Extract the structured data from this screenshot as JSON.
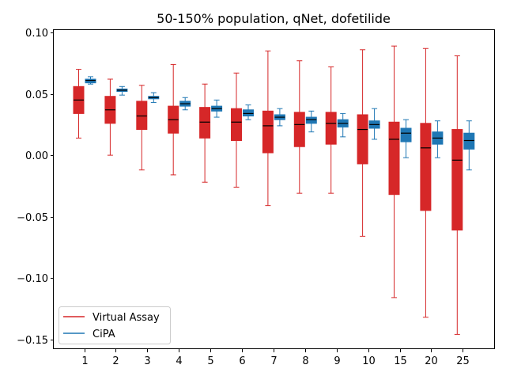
{
  "chart_data": {
    "type": "box",
    "title": "50-150% population, qNet, dofetilide",
    "xlabel": "",
    "ylabel": "",
    "categories": [
      "1",
      "2",
      "3",
      "4",
      "5",
      "6",
      "7",
      "8",
      "9",
      "10",
      "15",
      "20",
      "25"
    ],
    "ylim": [
      -0.158,
      0.102
    ],
    "yticks": [
      -0.15,
      -0.1,
      -0.05,
      0.0,
      0.05,
      0.1
    ],
    "ytick_labels": [
      "−0.15",
      "−0.10",
      "−0.05",
      "0.00",
      "0.05",
      "0.10"
    ],
    "legend_position": "lower-left",
    "grid": false,
    "series": [
      {
        "name": "Virtual Assay",
        "color": "#d62728",
        "boxes": [
          {
            "whislo": 0.014,
            "q1": 0.034,
            "med": 0.045,
            "q3": 0.056,
            "whishi": 0.07
          },
          {
            "whislo": 0.0,
            "q1": 0.026,
            "med": 0.037,
            "q3": 0.048,
            "whishi": 0.062
          },
          {
            "whislo": -0.012,
            "q1": 0.021,
            "med": 0.032,
            "q3": 0.044,
            "whishi": 0.057
          },
          {
            "whislo": -0.016,
            "q1": 0.018,
            "med": 0.029,
            "q3": 0.04,
            "whishi": 0.074
          },
          {
            "whislo": -0.022,
            "q1": 0.014,
            "med": 0.027,
            "q3": 0.039,
            "whishi": 0.058
          },
          {
            "whislo": -0.026,
            "q1": 0.012,
            "med": 0.027,
            "q3": 0.038,
            "whishi": 0.067
          },
          {
            "whislo": -0.041,
            "q1": 0.002,
            "med": 0.024,
            "q3": 0.036,
            "whishi": 0.085
          },
          {
            "whislo": -0.031,
            "q1": 0.007,
            "med": 0.025,
            "q3": 0.035,
            "whishi": 0.077
          },
          {
            "whislo": -0.031,
            "q1": 0.009,
            "med": 0.026,
            "q3": 0.035,
            "whishi": 0.072
          },
          {
            "whislo": -0.066,
            "q1": -0.007,
            "med": 0.021,
            "q3": 0.033,
            "whishi": 0.086
          },
          {
            "whislo": -0.116,
            "q1": -0.032,
            "med": 0.013,
            "q3": 0.027,
            "whishi": 0.089
          },
          {
            "whislo": -0.132,
            "q1": -0.045,
            "med": 0.006,
            "q3": 0.026,
            "whishi": 0.087
          },
          {
            "whislo": -0.146,
            "q1": -0.061,
            "med": -0.004,
            "q3": 0.021,
            "whishi": 0.081
          }
        ]
      },
      {
        "name": "CiPA",
        "color": "#1f77b4",
        "boxes": [
          {
            "whislo": 0.058,
            "q1": 0.059,
            "med": 0.061,
            "q3": 0.062,
            "whishi": 0.064
          },
          {
            "whislo": 0.049,
            "q1": 0.052,
            "med": 0.053,
            "q3": 0.054,
            "whishi": 0.056
          },
          {
            "whislo": 0.043,
            "q1": 0.046,
            "med": 0.047,
            "q3": 0.048,
            "whishi": 0.051
          },
          {
            "whislo": 0.037,
            "q1": 0.04,
            "med": 0.042,
            "q3": 0.044,
            "whishi": 0.047
          },
          {
            "whislo": 0.031,
            "q1": 0.036,
            "med": 0.038,
            "q3": 0.04,
            "whishi": 0.045
          },
          {
            "whislo": 0.029,
            "q1": 0.032,
            "med": 0.034,
            "q3": 0.037,
            "whishi": 0.041
          },
          {
            "whislo": 0.024,
            "q1": 0.029,
            "med": 0.031,
            "q3": 0.033,
            "whishi": 0.038
          },
          {
            "whislo": 0.019,
            "q1": 0.026,
            "med": 0.029,
            "q3": 0.031,
            "whishi": 0.036
          },
          {
            "whislo": 0.015,
            "q1": 0.023,
            "med": 0.026,
            "q3": 0.029,
            "whishi": 0.034
          },
          {
            "whislo": 0.013,
            "q1": 0.022,
            "med": 0.025,
            "q3": 0.028,
            "whishi": 0.038
          },
          {
            "whislo": -0.002,
            "q1": 0.011,
            "med": 0.018,
            "q3": 0.022,
            "whishi": 0.029
          },
          {
            "whislo": -0.002,
            "q1": 0.009,
            "med": 0.014,
            "q3": 0.019,
            "whishi": 0.028
          },
          {
            "whislo": -0.012,
            "q1": 0.005,
            "med": 0.012,
            "q3": 0.018,
            "whishi": 0.028
          }
        ]
      }
    ]
  }
}
